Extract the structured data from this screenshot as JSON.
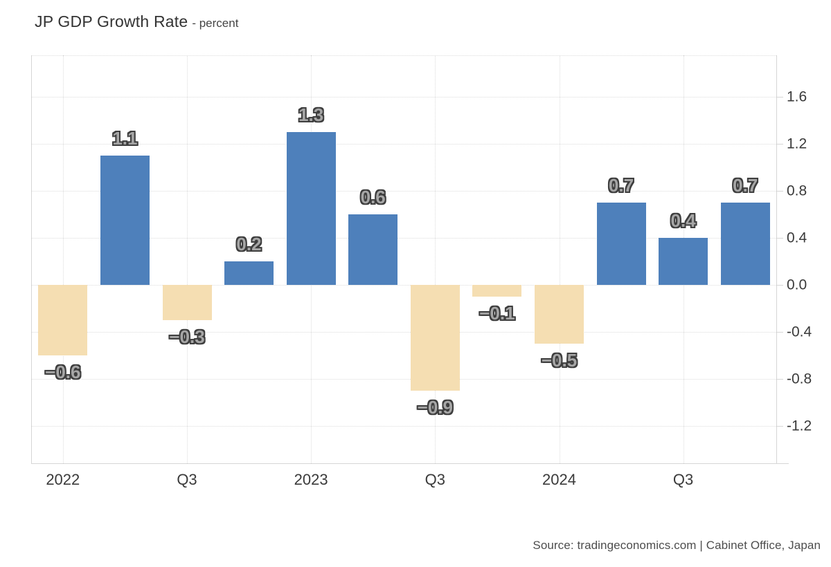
{
  "title": {
    "main": "JP GDP Growth Rate",
    "sub": "- percent"
  },
  "source": "Source: tradingeconomics.com | Cabinet Office, Japan",
  "colors": {
    "bar_positive": "#4E80BB",
    "bar_negative": "#F5DEB2",
    "gridline": "#dcdcdc",
    "axis_line": "#d6d6d6",
    "tick_text": "#3a3a3a",
    "value_label_fill": "#a6a6a6",
    "value_label_outline": "#3e3e3e",
    "title_text": "#333333",
    "subtitle_text": "#454545",
    "source_text": "#4d4d4d"
  },
  "chart_data": {
    "type": "bar",
    "title": "JP GDP Growth Rate",
    "ylabel": "percent",
    "values": [
      -0.6,
      1.1,
      -0.3,
      0.2,
      1.3,
      0.6,
      -0.9,
      -0.1,
      -0.5,
      0.7,
      0.4,
      0.7
    ],
    "bar_labels": [
      "−0.6",
      "1.1",
      "−0.3",
      "0.2",
      "1.3",
      "0.6",
      "−0.9",
      "−0.1",
      "−0.5",
      "0.7",
      "0.4",
      "0.7"
    ],
    "x_ticks": [
      {
        "slot": 0,
        "label": "2022"
      },
      {
        "slot": 2,
        "label": "Q3"
      },
      {
        "slot": 4,
        "label": "2023"
      },
      {
        "slot": 6,
        "label": "Q3"
      },
      {
        "slot": 8,
        "label": "2024"
      },
      {
        "slot": 10,
        "label": "Q3"
      }
    ],
    "y_ticks": [
      {
        "value": 1.6,
        "label": "1.6"
      },
      {
        "value": 1.2,
        "label": "1.2"
      },
      {
        "value": 0.8,
        "label": "0.8"
      },
      {
        "value": 0.4,
        "label": "0.4"
      },
      {
        "value": 0.0,
        "label": "0.0"
      },
      {
        "value": -0.4,
        "label": "-0.4"
      },
      {
        "value": -0.8,
        "label": "-0.8"
      },
      {
        "value": -1.2,
        "label": "-1.2"
      }
    ],
    "ylim": [
      -1.52,
      1.95
    ],
    "grid": true,
    "legend": false,
    "y_axis_side": "right"
  }
}
